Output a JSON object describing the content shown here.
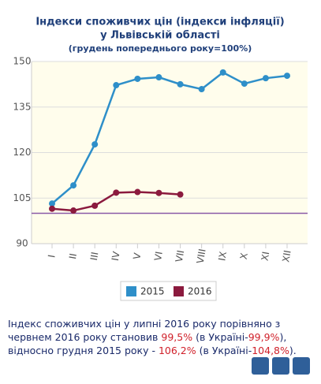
{
  "chart_data": {
    "type": "line",
    "title": "Індекси споживчих цін (індекси інфляції)",
    "title_line2": "у Львівській області",
    "subtitle": "(грудень попереднього року=100%)",
    "categories": [
      "I",
      "II",
      "III",
      "IV",
      "V",
      "VI",
      "VII",
      "VIII",
      "IX",
      "X",
      "XI",
      "XII"
    ],
    "series": [
      {
        "name": "2015",
        "color": "#2e8fc9",
        "values": [
          103.2,
          109.2,
          122.7,
          142.2,
          144.3,
          144.8,
          142.5,
          140.9,
          146.4,
          142.7,
          144.5,
          145.3
        ]
      },
      {
        "name": "2016",
        "color": "#8b1a3e",
        "values": [
          101.5,
          100.9,
          102.5,
          106.8,
          107.0,
          106.7,
          106.2,
          null,
          null,
          null,
          null,
          null
        ]
      }
    ],
    "ylim": [
      90,
      150
    ],
    "yticks": [
      90,
      105,
      120,
      135,
      150
    ],
    "grid": true,
    "reference_line": 100,
    "reference_color": "#8a5aa8"
  },
  "note": [
    "Індекс споживчих цін у липні 2016 року порівняно з червнем 2016 року становив ",
    "99,5%",
    " (в Україні-",
    "99,9%",
    "),",
    "відносно грудня 2015 року - ",
    "106,2%",
    " (в Україні-",
    "104,8%",
    ")."
  ]
}
